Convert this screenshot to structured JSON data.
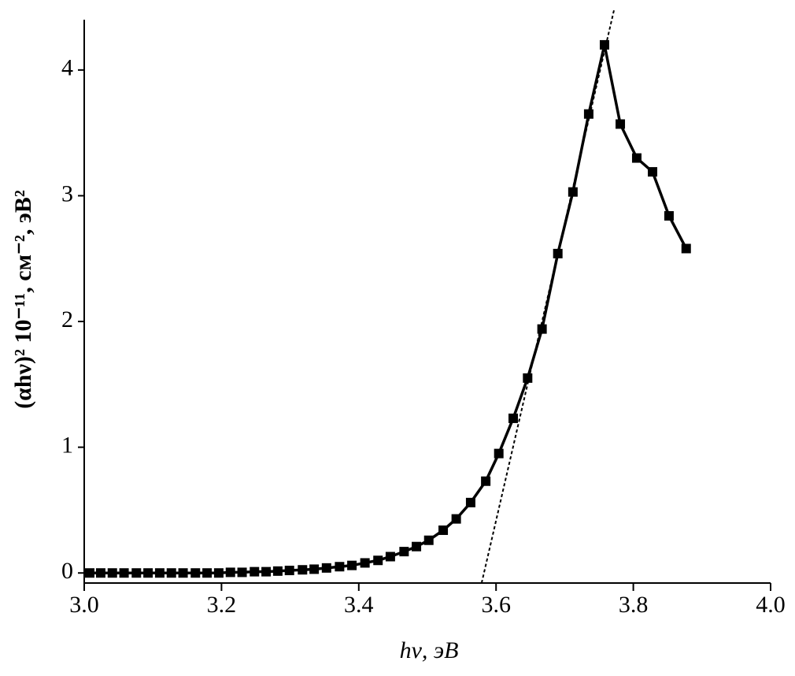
{
  "chart_data": {
    "type": "line",
    "x_label": "hν, эВ",
    "y_label": "(αhν)² 10⁻¹¹, см⁻², эВ²",
    "xlim": [
      3.0,
      4.0
    ],
    "ylim": [
      -0.08,
      4.4
    ],
    "xticks": [
      {
        "value": 3.0,
        "label": "3.0"
      },
      {
        "value": 3.2,
        "label": "3.2"
      },
      {
        "value": 3.4,
        "label": "3.4"
      },
      {
        "value": 3.6,
        "label": "3.6"
      },
      {
        "value": 3.8,
        "label": "3.8"
      },
      {
        "value": 4.0,
        "label": "4.0"
      }
    ],
    "yticks": [
      0,
      1,
      2,
      3,
      4
    ],
    "series": [
      {
        "color": "#000000",
        "x": [
          3.008,
          3.024,
          3.041,
          3.058,
          3.076,
          3.093,
          3.11,
          3.127,
          3.144,
          3.162,
          3.179,
          3.196,
          3.213,
          3.23,
          3.248,
          3.265,
          3.282,
          3.299,
          3.318,
          3.335,
          3.353,
          3.372,
          3.39,
          3.409,
          3.428,
          3.446,
          3.466,
          3.484,
          3.502,
          3.523,
          3.542,
          3.563,
          3.585,
          3.604,
          3.625,
          3.646,
          3.667,
          3.69,
          3.712,
          3.735,
          3.758,
          3.781,
          3.805,
          3.828,
          3.852,
          3.877
        ],
        "values": [
          0,
          0,
          0,
          0,
          0,
          0,
          0,
          0,
          0,
          0,
          0,
          0,
          0.005,
          0.005,
          0.01,
          0.01,
          0.015,
          0.02,
          0.025,
          0.03,
          0.04,
          0.05,
          0.06,
          0.08,
          0.1,
          0.13,
          0.17,
          0.21,
          0.26,
          0.34,
          0.43,
          0.56,
          0.73,
          0.95,
          1.23,
          1.55,
          1.94,
          2.54,
          3.03,
          3.65,
          4.2,
          3.57,
          3.3,
          3.19,
          2.84,
          2.58
        ]
      },
      {
        "color": "#000000",
        "dashed": true,
        "x": [
          3.579,
          3.772
        ],
        "values": [
          -0.08,
          4.48
        ]
      }
    ]
  }
}
